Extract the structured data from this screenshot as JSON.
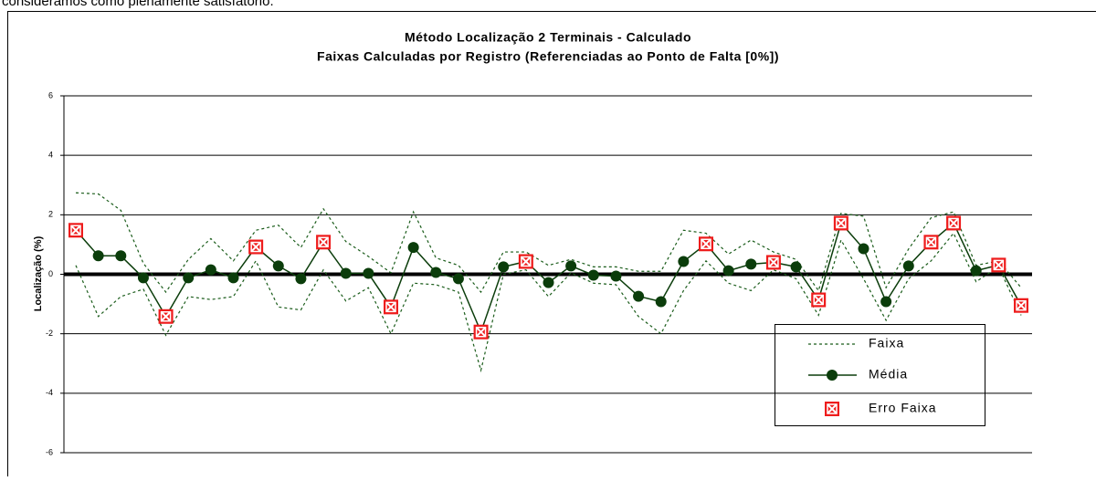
{
  "document": {
    "text": "consideramos como plenamente satisfatório."
  },
  "chart_data": {
    "type": "line",
    "title": "Método Localização 2 Terminais - Calculado",
    "subtitle": "Faixas Calculadas por Registro (Referenciadas ao Ponto de Falta [0%])",
    "y_label": "Localização (%)",
    "ylim": [
      -6,
      6
    ],
    "yticks": [
      -6,
      -4,
      -2,
      0,
      2,
      4,
      6
    ],
    "grid": true,
    "series": [
      {
        "name": "Faixa",
        "color": "#1a5c1a",
        "upper": [
          2.74,
          2.7,
          2.15,
          0.37,
          -0.6,
          0.5,
          1.2,
          0.45,
          1.48,
          1.65,
          0.9,
          2.2,
          1.1,
          0.6,
          0.05,
          2.1,
          0.55,
          0.3,
          -0.6,
          0.75,
          0.75,
          0.3,
          0.5,
          0.25,
          0.25,
          0.1,
          0.1,
          1.48,
          1.38,
          0.68,
          1.15,
          0.75,
          0.5,
          -0.55,
          2.05,
          1.95,
          -0.45,
          0.85,
          1.9,
          2.1,
          0.3,
          0.45,
          -0.45
        ],
        "lower": [
          0.3,
          -1.42,
          -0.75,
          -0.5,
          -2.05,
          -0.75,
          -0.85,
          -0.75,
          0.45,
          -1.1,
          -1.2,
          0.15,
          -0.9,
          -0.45,
          -2.0,
          -0.3,
          -0.35,
          -0.6,
          -3.23,
          0,
          0.15,
          -0.75,
          0.05,
          -0.3,
          -0.35,
          -1.42,
          -2.0,
          -0.55,
          0.45,
          -0.3,
          -0.55,
          0.15,
          -0.15,
          -1.38,
          1.15,
          -0.15,
          -1.55,
          -0.15,
          0.45,
          1.38,
          -0.25,
          0.25,
          -1.38
        ]
      },
      {
        "name": "Média",
        "color": "#0b3d0b",
        "values": [
          1.48,
          0.62,
          0.62,
          -0.12,
          -1.42,
          -0.12,
          0.15,
          -0.12,
          0.92,
          0.28,
          -0.15,
          1.08,
          0.03,
          0.03,
          -1.1,
          0.9,
          0.06,
          -0.15,
          -1.94,
          0.25,
          0.43,
          -0.28,
          0.28,
          -0.03,
          -0.06,
          -0.74,
          -0.92,
          0.43,
          1.02,
          0.12,
          0.34,
          0.4,
          0.25,
          -0.86,
          1.72,
          0.86,
          -0.92,
          0.28,
          1.08,
          1.72,
          0.12,
          0.31,
          -1.05
        ]
      },
      {
        "name": "Erro Faixa",
        "color": "#ee1c1c",
        "values": [
          1.48,
          null,
          null,
          null,
          -1.42,
          null,
          null,
          null,
          0.92,
          null,
          null,
          1.08,
          null,
          null,
          -1.1,
          null,
          null,
          null,
          -1.94,
          null,
          0.43,
          null,
          null,
          null,
          null,
          null,
          null,
          null,
          1.02,
          null,
          null,
          0.4,
          null,
          -0.86,
          1.72,
          null,
          null,
          null,
          1.08,
          1.72,
          null,
          0.31,
          -1.05
        ]
      }
    ]
  }
}
